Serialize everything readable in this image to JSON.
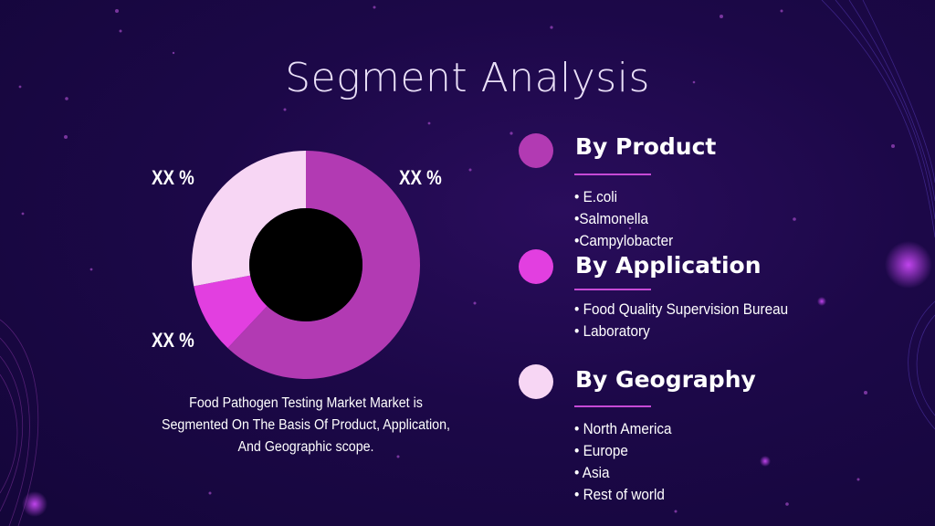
{
  "slide": {
    "title": "Segment Analysis",
    "caption": "Food Pathogen Testing Market Market is Segmented On The Basis Of Product, Application, And Geographic scope."
  },
  "chart_data": {
    "type": "pie",
    "variant": "donut",
    "title": "",
    "slices": [
      {
        "label": "XX %",
        "value": 62,
        "color": "#b23ab3"
      },
      {
        "label": "XX %",
        "value": 10,
        "color": "#e23fe0"
      },
      {
        "label": "XX %",
        "value": 28,
        "color": "#f7d6f4"
      }
    ]
  },
  "segments": [
    {
      "heading": "By Product",
      "color": "#b23ab3",
      "items": [
        "• E.coli",
        "•Salmonella",
        "•Campylobacter"
      ]
    },
    {
      "heading": "By Application",
      "color": "#e23fe0",
      "items": [
        "• Food Quality Supervision Bureau",
        "• Laboratory"
      ]
    },
    {
      "heading": "By Geography",
      "color": "#f7d6f4",
      "items": [
        "• North America",
        "• Europe",
        "• Asia",
        "• Rest of world"
      ]
    }
  ]
}
